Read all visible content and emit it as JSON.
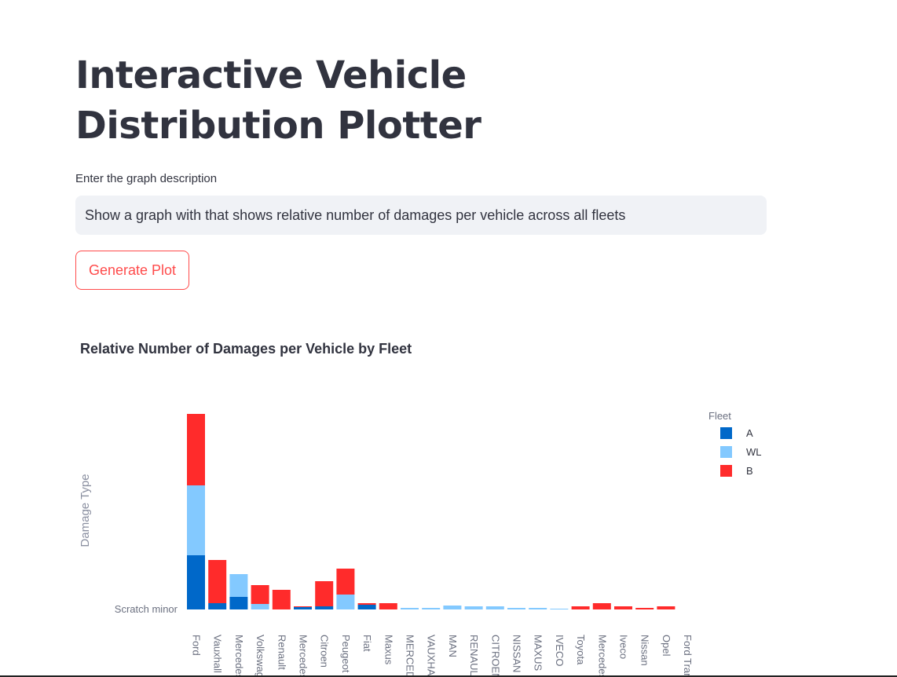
{
  "page": {
    "title": "Interactive Vehicle Distribution Plotter",
    "input_label": "Enter the graph description",
    "input_value": "Show a graph with that shows relative number of damages per vehicle across all fleets",
    "button_label": "Generate Plot"
  },
  "chart_data": {
    "type": "bar",
    "stacked": true,
    "title": "Relative Number of Damages per Vehicle by Fleet",
    "xlabel": "",
    "ylabel": "Damage Type",
    "y_tick_labels": [
      "Scratch minor"
    ],
    "legend_title": "Fleet",
    "legend_placement": "top-right",
    "categories": [
      "Ford",
      "Vauxhall",
      "Mercedes",
      "Volkswagen",
      "Renault",
      "Mercedes",
      "Citroen",
      "Peugeot",
      "Fiat",
      "Maxus",
      "MERCEDES",
      "VAUXHALL",
      "MAN",
      "RENAULT",
      "CITROEN",
      "NISSAN",
      "MAXUS",
      "IVECO",
      "Toyota",
      "Mercedes",
      "Iveco",
      "Nissan",
      "Opel",
      "Ford Transit"
    ],
    "series": [
      {
        "name": "A",
        "color": "#0068c9",
        "values": [
          69,
          8,
          16,
          0,
          0,
          3,
          4,
          0,
          6,
          0,
          0,
          0,
          0,
          0,
          0,
          0,
          0,
          0,
          0,
          0,
          0,
          0,
          0,
          0
        ]
      },
      {
        "name": "WL",
        "color": "#83c9ff",
        "values": [
          89,
          0,
          29,
          7,
          0,
          0,
          0,
          19,
          0,
          0,
          2,
          2,
          5,
          4,
          4,
          2,
          2,
          1,
          0,
          0,
          0,
          0,
          0,
          0
        ]
      },
      {
        "name": "B",
        "color": "#ff2b2b",
        "values": [
          91,
          55,
          0,
          24,
          25,
          1,
          32,
          33,
          2,
          8,
          0,
          0,
          0,
          0,
          0,
          0,
          0,
          0,
          4,
          8,
          4,
          2,
          4,
          0
        ]
      }
    ],
    "ylim": [
      0,
      250
    ],
    "grid": false
  }
}
